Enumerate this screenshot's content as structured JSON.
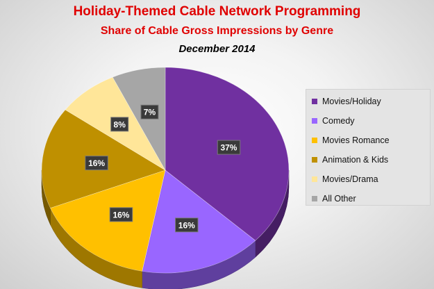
{
  "chart_data": {
    "type": "pie",
    "title": "Holiday-Themed Cable Network Programming",
    "subtitle": "Share of Cable Gross Impressions by Genre",
    "period": "December 2014",
    "categories": [
      "Movies/Holiday",
      "Comedy",
      "Movies Romance",
      "Animation & Kids",
      "Movies/Drama",
      "All Other"
    ],
    "values": [
      37,
      16,
      16,
      16,
      8,
      7
    ],
    "data_labels": [
      "37%",
      "16%",
      "16%",
      "16%",
      "8%",
      "7%"
    ],
    "colors": [
      "#7030a0",
      "#9966ff",
      "#ffc000",
      "#bf9000",
      "#ffe699",
      "#a6a6a6"
    ],
    "legend_position": "right",
    "three_d": true
  }
}
